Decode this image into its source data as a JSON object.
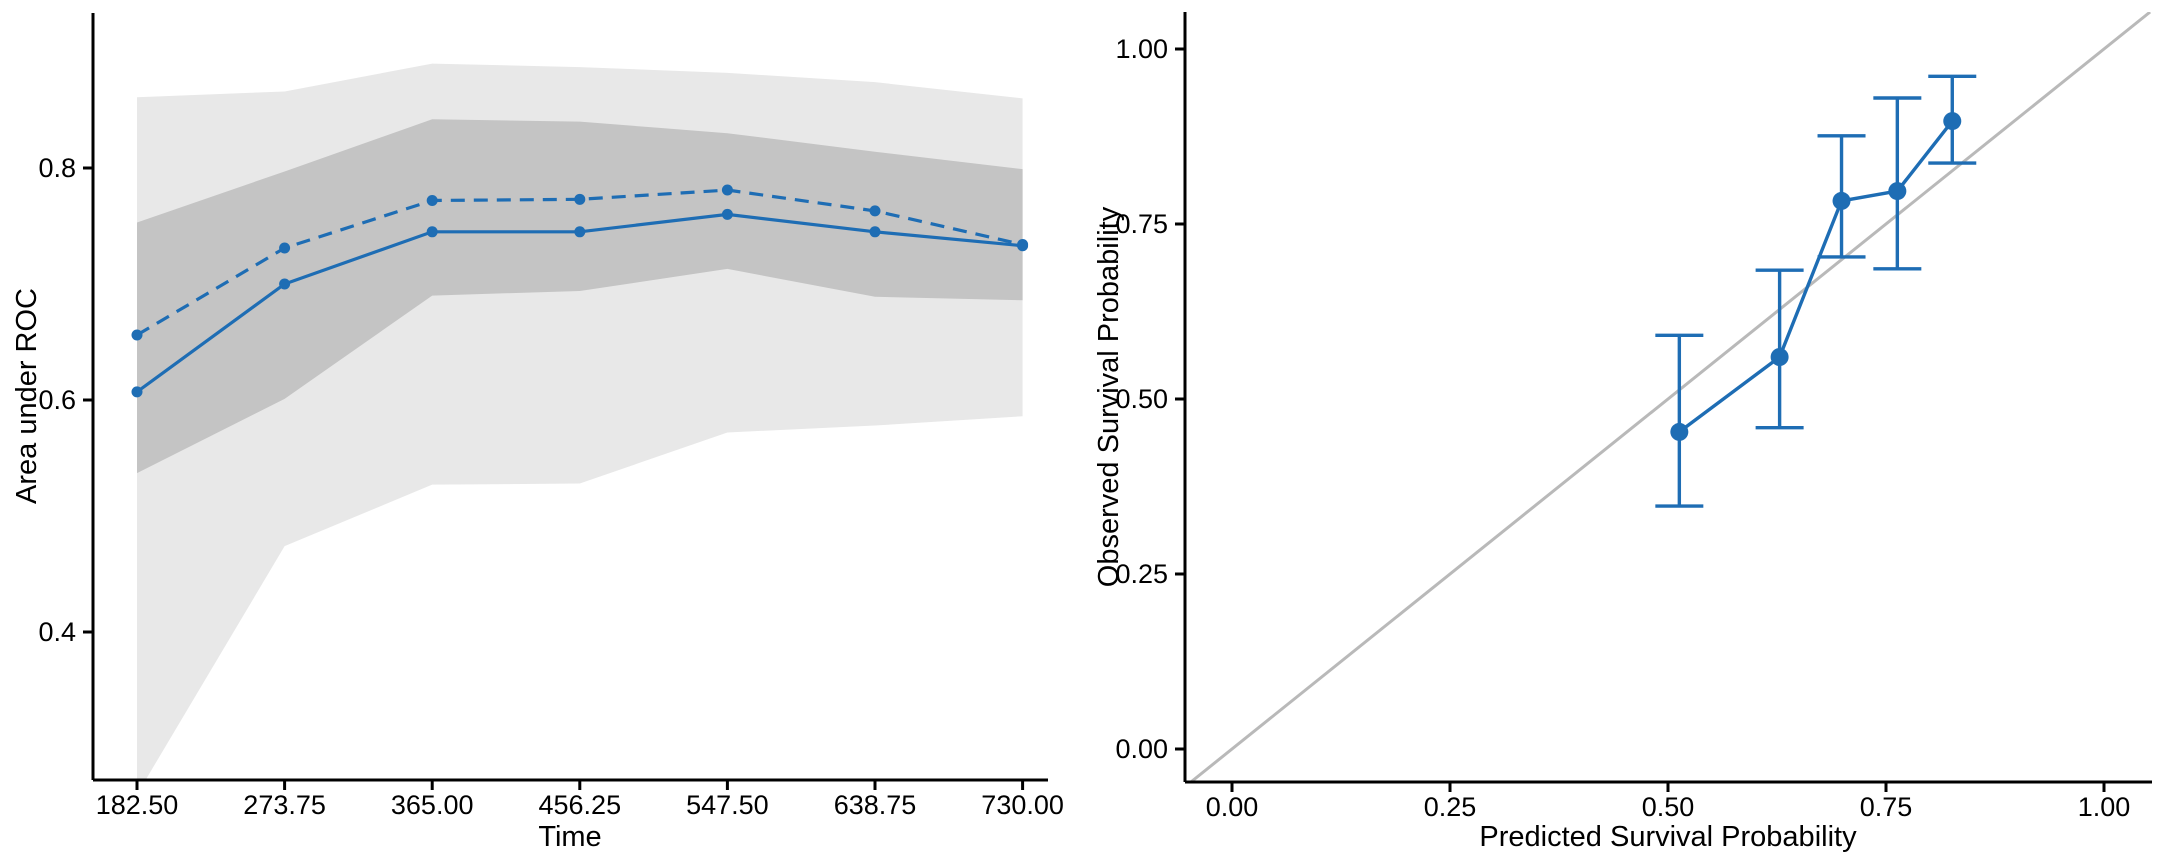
{
  "figure": {
    "background": "#ffffff",
    "accent_blue": "#1e6db4",
    "outer_band_gray": "#e8e8e8",
    "inner_band_gray": "#c4c4c4",
    "diagonal_gray": "#b9b9b9",
    "axis_color": "#000000"
  },
  "chart_data": [
    {
      "type": "line",
      "title": "",
      "xlabel": "Time",
      "ylabel": "Area under ROC",
      "x": [
        182.5,
        273.75,
        365,
        456.25,
        547.5,
        638.75,
        730
      ],
      "x_tick_labels": [
        "182.50",
        "273.75",
        "365.00",
        "456.25",
        "547.50",
        "638.75",
        "730.00"
      ],
      "y_ticks": [
        0.4,
        0.6,
        0.8
      ],
      "y_tick_labels": [
        "0.4",
        "0.6",
        "0.8"
      ],
      "xlim": [
        155,
        746
      ],
      "ylim": [
        0.272,
        0.934
      ],
      "grid": false,
      "legend": "none",
      "series": [
        {
          "style": "solid",
          "values": [
            0.607,
            0.7,
            0.745,
            0.745,
            0.76,
            0.745,
            0.733
          ]
        },
        {
          "style": "dashed",
          "values": [
            0.656,
            0.731,
            0.772,
            0.773,
            0.781,
            0.763,
            0.734
          ]
        }
      ],
      "bands": [
        {
          "level": "outer",
          "upper": [
            0.861,
            0.866,
            0.89,
            0.887,
            0.882,
            0.874,
            0.86
          ],
          "lower": [
            0.26,
            0.474,
            0.527,
            0.528,
            0.572,
            0.578,
            0.586
          ]
        },
        {
          "level": "inner",
          "upper": [
            0.753,
            0.797,
            0.842,
            0.84,
            0.83,
            0.814,
            0.799
          ],
          "lower": [
            0.537,
            0.601,
            0.69,
            0.694,
            0.713,
            0.689,
            0.686
          ]
        }
      ]
    },
    {
      "type": "scatter",
      "title": "",
      "xlabel": "Predicted Survival Probability",
      "ylabel": "Observed Survival Probability",
      "x_ticks": [
        0,
        0.25,
        0.5,
        0.75,
        1
      ],
      "x_tick_labels": [
        "0.00",
        "0.25",
        "0.50",
        "0.75",
        "1.00"
      ],
      "y_ticks": [
        0,
        0.25,
        0.5,
        0.75,
        1
      ],
      "y_tick_labels": [
        "0.00",
        "0.25",
        "0.50",
        "0.75",
        "1.00"
      ],
      "xlim": [
        -0.055,
        1.055
      ],
      "ylim": [
        -0.047,
        1.053
      ],
      "grid": false,
      "legend": "none",
      "diagonal": true,
      "points": {
        "predicted": [
          0.513,
          0.628,
          0.699,
          0.763,
          0.826
        ],
        "observed": [
          0.453,
          0.56,
          0.783,
          0.797,
          0.897
        ],
        "ci_lower": [
          0.347,
          0.459,
          0.703,
          0.686,
          0.837
        ],
        "ci_upper": [
          0.591,
          0.684,
          0.876,
          0.93,
          0.961
        ]
      }
    }
  ]
}
